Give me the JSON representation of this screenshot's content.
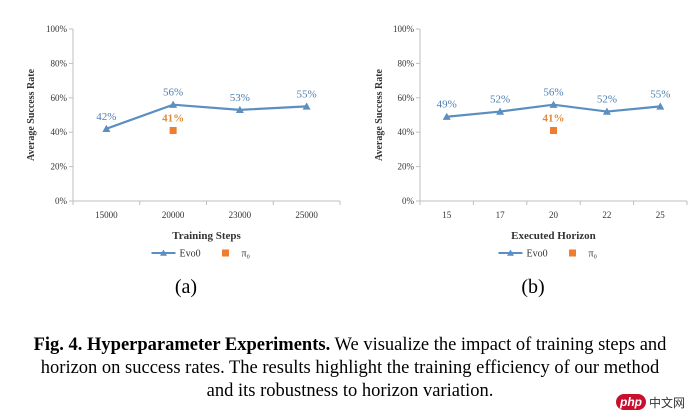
{
  "chart_data": [
    {
      "type": "line",
      "panel": "(a)",
      "xlabel": "Training Steps",
      "ylabel": "Average Success Rate",
      "categories": [
        "15000",
        "20000",
        "23000",
        "25000"
      ],
      "ylim": [
        0,
        100
      ],
      "yticks": [
        "0%",
        "20%",
        "40%",
        "60%",
        "80%",
        "100%"
      ],
      "series": [
        {
          "name": "Evo0",
          "color": "#5b8ec1",
          "marker": "triangle",
          "values": [
            42,
            56,
            53,
            55
          ],
          "labels": [
            "42%",
            "56%",
            "53%",
            "55%"
          ]
        },
        {
          "name": "π₀",
          "color": "#ed7d31",
          "marker": "square",
          "values": [
            null,
            41,
            null,
            null
          ],
          "labels": [
            null,
            "41%",
            null,
            null
          ]
        }
      ]
    },
    {
      "type": "line",
      "panel": "(b)",
      "xlabel": "Executed Horizon",
      "ylabel": "Average Success Rate",
      "categories": [
        "15",
        "17",
        "20",
        "22",
        "25"
      ],
      "ylim": [
        0,
        100
      ],
      "yticks": [
        "0%",
        "20%",
        "40%",
        "60%",
        "80%",
        "100%"
      ],
      "series": [
        {
          "name": "Evo0",
          "color": "#5b8ec1",
          "marker": "triangle",
          "values": [
            49,
            52,
            56,
            52,
            55
          ],
          "labels": [
            "49%",
            "52%",
            "56%",
            "52%",
            "55%"
          ]
        },
        {
          "name": "π₀",
          "color": "#ed7d31",
          "marker": "square",
          "values": [
            null,
            null,
            41,
            null,
            null
          ],
          "labels": [
            null,
            null,
            "41%",
            null,
            null
          ]
        }
      ]
    }
  ],
  "caption": {
    "fig_label": "Fig. 4.",
    "title": "Hyperparameter Experiments.",
    "text": "We visualize the impact of training steps and horizon on success rates. The results highlight the training efficiency of our method and its robustness to horizon variation."
  },
  "watermark": {
    "brand": "php",
    "suffix": "中文网"
  }
}
